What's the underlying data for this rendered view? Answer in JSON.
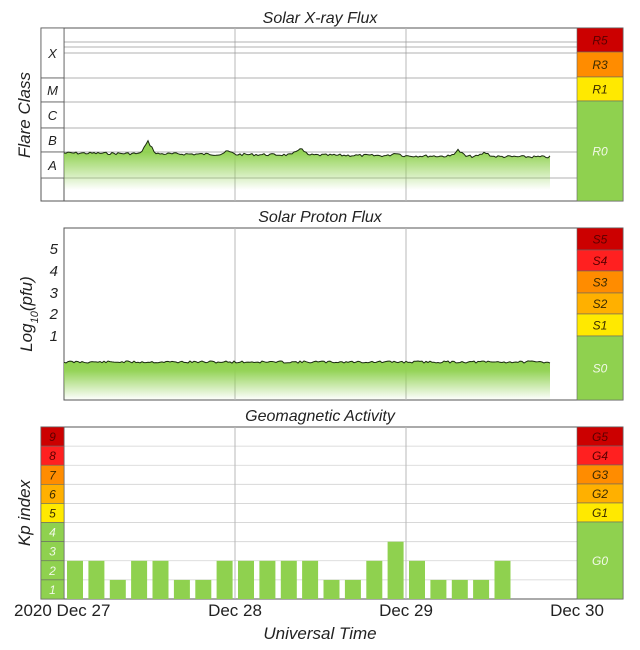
{
  "chart_data": [
    {
      "type": "area",
      "title": "Solar X-ray Flux",
      "ylabel": "Flare Class",
      "y_class_labels": [
        "X",
        "M",
        "C",
        "B",
        "A"
      ],
      "scale_labels": [
        "R5",
        "R3",
        "R1",
        "R0"
      ],
      "scale_colors": [
        "#cc0000",
        "#ff8c00",
        "#ffe900",
        "#8fd14f"
      ],
      "x_days": [
        "Dec 27",
        "Dec 28",
        "Dec 29",
        "Dec 30"
      ],
      "flux_class_level": [
        {
          "t": "Dec 27 00:00",
          "class": "A8"
        },
        {
          "t": "Dec 27 10:00",
          "class": "B1"
        },
        {
          "t": "Dec 27 12:00",
          "class": "B4"
        },
        {
          "t": "Dec 28 00:00",
          "class": "A8"
        },
        {
          "t": "Dec 28 15:00",
          "class": "B2"
        },
        {
          "t": "Dec 29 00:00",
          "class": "A8"
        },
        {
          "t": "Dec 29 08:00",
          "class": "B1"
        },
        {
          "t": "Dec 29 19:00",
          "class": "A6"
        }
      ]
    },
    {
      "type": "area",
      "title": "Solar Proton Flux",
      "ylabel": "Log10(pfu)",
      "yticks": [
        "5",
        "4",
        "3",
        "2",
        "1"
      ],
      "scale_labels": [
        "S5",
        "S4",
        "S3",
        "S2",
        "S1",
        "S0"
      ],
      "scale_colors": [
        "#cc0000",
        "#ff2020",
        "#ff8c00",
        "#ffb000",
        "#ffe900",
        "#8fd14f"
      ],
      "x_days": [
        "Dec 27",
        "Dec 28",
        "Dec 29",
        "Dec 30"
      ],
      "level_log10_pfu": -0.1
    },
    {
      "type": "bar",
      "title": "Geomagnetic Activity",
      "ylabel": "Kp index",
      "xlabel": "Universal Time",
      "x_ticks": [
        "2020 Dec 27",
        "Dec 28",
        "Dec 29",
        "Dec 30"
      ],
      "kp_scale": [
        "9",
        "8",
        "7",
        "6",
        "5",
        "4",
        "3",
        "2",
        "1"
      ],
      "kp_colors": [
        "#cc0000",
        "#ff2020",
        "#ff8c00",
        "#ffb000",
        "#ffe900",
        "#8fd14f",
        "#8fd14f",
        "#8fd14f",
        "#8fd14f"
      ],
      "scale_labels": [
        "G5",
        "G4",
        "G3",
        "G2",
        "G1",
        "G0"
      ],
      "scale_colors": [
        "#cc0000",
        "#ff2020",
        "#ff8c00",
        "#ffb000",
        "#ffe900",
        "#8fd14f"
      ],
      "ylim": [
        0,
        9
      ],
      "values": [
        2,
        2,
        1,
        2,
        2,
        1,
        1,
        2,
        2,
        2,
        2,
        2,
        1,
        1,
        2,
        3,
        2,
        1,
        1,
        1,
        2
      ],
      "bar_color": "#8fd14f"
    }
  ]
}
